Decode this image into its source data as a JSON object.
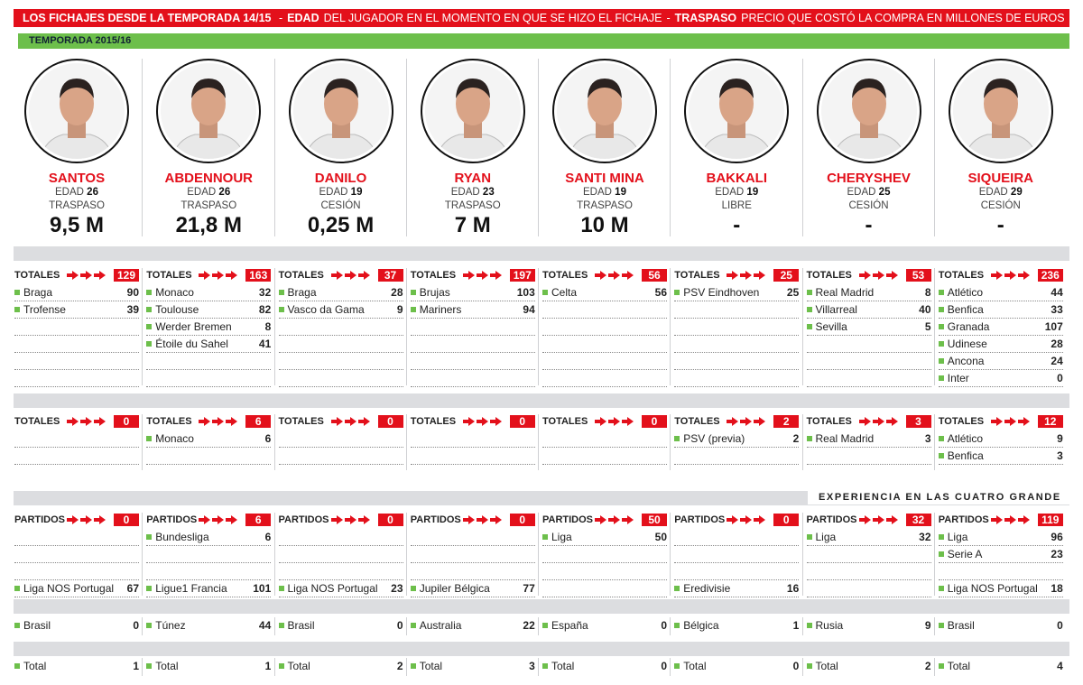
{
  "header": {
    "title": "LOS FICHAJES DESDE LA TEMPORADA 14/15",
    "items": [
      {
        "separator": "-",
        "term": "EDAD",
        "text": "DEL JUGADOR EN EL MOMENTO EN QUE SE HIZO EL FICHAJE"
      },
      {
        "separator": "-",
        "term": "TRASPASO",
        "text": "PRECIO QUE COSTÓ LA COMPRA EN MILLONES DE EUROS"
      }
    ]
  },
  "season": "TEMPORADA 2015/16",
  "experience_label": "EXPERIENCIA EN LAS CUATRO GRANDE",
  "players": [
    {
      "name": "SANTOS",
      "age_label": "EDAD",
      "age": 26,
      "kind": "TRASPASO",
      "price": "9,5 M",
      "clubs": {
        "label": "TOTALES",
        "total": 129,
        "rows": [
          {
            "name": "Braga",
            "value": 90
          },
          {
            "name": "Trofense",
            "value": 39
          }
        ]
      },
      "europe": {
        "label": "TOTALES",
        "total": 0,
        "rows": []
      },
      "leagues": {
        "label": "PARTIDOS",
        "total": 0,
        "rows": [],
        "bottom": {
          "name": "Liga NOS Portugal",
          "value": 67
        }
      },
      "country": {
        "name": "Brasil",
        "value": 0
      },
      "final": {
        "name": "Total",
        "value": 1
      }
    },
    {
      "name": "ABDENNOUR",
      "age_label": "EDAD",
      "age": 26,
      "kind": "TRASPASO",
      "price": "21,8 M",
      "clubs": {
        "label": "TOTALES",
        "total": 163,
        "rows": [
          {
            "name": "Monaco",
            "value": 32
          },
          {
            "name": "Toulouse",
            "value": 82
          },
          {
            "name": "Werder Bremen",
            "value": 8
          },
          {
            "name": "Étoile du Sahel",
            "value": 41
          }
        ]
      },
      "europe": {
        "label": "TOTALES",
        "total": 6,
        "rows": [
          {
            "name": "Monaco",
            "value": 6
          }
        ]
      },
      "leagues": {
        "label": "PARTIDOS",
        "total": 6,
        "rows": [
          {
            "name": "Bundesliga",
            "value": 6
          }
        ],
        "bottom": {
          "name": "Ligue1 Francia",
          "value": 101
        }
      },
      "country": {
        "name": "Túnez",
        "value": 44
      },
      "final": {
        "name": "Total",
        "value": 1
      }
    },
    {
      "name": "DANILO",
      "age_label": "EDAD",
      "age": 19,
      "kind": "CESIÓN",
      "price": "0,25 M",
      "clubs": {
        "label": "TOTALES",
        "total": 37,
        "rows": [
          {
            "name": "Braga",
            "value": 28
          },
          {
            "name": "Vasco da Gama",
            "value": 9
          }
        ]
      },
      "europe": {
        "label": "TOTALES",
        "total": 0,
        "rows": []
      },
      "leagues": {
        "label": "PARTIDOS",
        "total": 0,
        "rows": [],
        "bottom": {
          "name": "Liga NOS Portugal",
          "value": 23
        }
      },
      "country": {
        "name": "Brasil",
        "value": 0
      },
      "final": {
        "name": "Total",
        "value": 2
      }
    },
    {
      "name": "RYAN",
      "age_label": "EDAD",
      "age": 23,
      "kind": "TRASPASO",
      "price": "7 M",
      "clubs": {
        "label": "TOTALES",
        "total": 197,
        "rows": [
          {
            "name": "Brujas",
            "value": 103
          },
          {
            "name": "Mariners",
            "value": 94
          }
        ]
      },
      "europe": {
        "label": "TOTALES",
        "total": 0,
        "rows": []
      },
      "leagues": {
        "label": "PARTIDOS",
        "total": 0,
        "rows": [],
        "bottom": {
          "name": "Jupiler Bélgica",
          "value": 77
        }
      },
      "country": {
        "name": "Australia",
        "value": 22
      },
      "final": {
        "name": "Total",
        "value": 3
      }
    },
    {
      "name": "SANTI MINA",
      "age_label": "EDAD",
      "age": 19,
      "kind": "TRASPASO",
      "price": "10 M",
      "clubs": {
        "label": "TOTALES",
        "total": 56,
        "rows": [
          {
            "name": "Celta",
            "value": 56
          }
        ]
      },
      "europe": {
        "label": "TOTALES",
        "total": 0,
        "rows": []
      },
      "leagues": {
        "label": "PARTIDOS",
        "total": 50,
        "rows": [
          {
            "name": "Liga",
            "value": 50
          }
        ]
      },
      "country": {
        "name": "España",
        "value": 0
      },
      "final": {
        "name": "Total",
        "value": 0
      }
    },
    {
      "name": "BAKKALI",
      "age_label": "EDAD",
      "age": 19,
      "kind": "LIBRE",
      "price": "-",
      "clubs": {
        "label": "TOTALES",
        "total": 25,
        "rows": [
          {
            "name": "PSV Eindhoven",
            "value": 25
          }
        ]
      },
      "europe": {
        "label": "TOTALES",
        "total": 2,
        "rows": [
          {
            "name": "PSV (previa)",
            "value": 2
          }
        ]
      },
      "leagues": {
        "label": "PARTIDOS",
        "total": 0,
        "rows": [],
        "bottom": {
          "name": "Eredivisie",
          "value": 16
        }
      },
      "country": {
        "name": "Bélgica",
        "value": 1
      },
      "final": {
        "name": "Total",
        "value": 0
      }
    },
    {
      "name": "CHERYSHEV",
      "age_label": "EDAD",
      "age": 25,
      "kind": "CESIÓN",
      "price": "-",
      "clubs": {
        "label": "TOTALES",
        "total": 53,
        "rows": [
          {
            "name": "Real Madrid",
            "value": 8
          },
          {
            "name": "Villarreal",
            "value": 40
          },
          {
            "name": "Sevilla",
            "value": 5
          }
        ]
      },
      "europe": {
        "label": "TOTALES",
        "total": 3,
        "rows": [
          {
            "name": "Real Madrid",
            "value": 3
          }
        ]
      },
      "leagues": {
        "label": "PARTIDOS",
        "total": 32,
        "rows": [
          {
            "name": "Liga",
            "value": 32
          }
        ]
      },
      "country": {
        "name": "Rusia",
        "value": 9
      },
      "final": {
        "name": "Total",
        "value": 2
      }
    },
    {
      "name": "SIQUEIRA",
      "age_label": "EDAD",
      "age": 29,
      "kind": "CESIÓN",
      "price": "-",
      "clubs": {
        "label": "TOTALES",
        "total": 236,
        "rows": [
          {
            "name": "Atlético",
            "value": 44
          },
          {
            "name": "Benfica",
            "value": 33
          },
          {
            "name": "Granada",
            "value": 107
          },
          {
            "name": "Udinese",
            "value": 28
          },
          {
            "name": "Ancona",
            "value": 24
          },
          {
            "name": "Inter",
            "value": 0
          }
        ]
      },
      "europe": {
        "label": "TOTALES",
        "total": 12,
        "rows": [
          {
            "name": "Atlético",
            "value": 9
          },
          {
            "name": "Benfica",
            "value": 3
          }
        ]
      },
      "leagues": {
        "label": "PARTIDOS",
        "total": 119,
        "rows": [
          {
            "name": "Liga",
            "value": 96
          },
          {
            "name": "Serie A",
            "value": 23
          }
        ],
        "bottom": {
          "name": "Liga NOS Portugal",
          "value": 18
        }
      },
      "country": {
        "name": "Brasil",
        "value": 0
      },
      "final": {
        "name": "Total",
        "value": 4
      }
    }
  ]
}
